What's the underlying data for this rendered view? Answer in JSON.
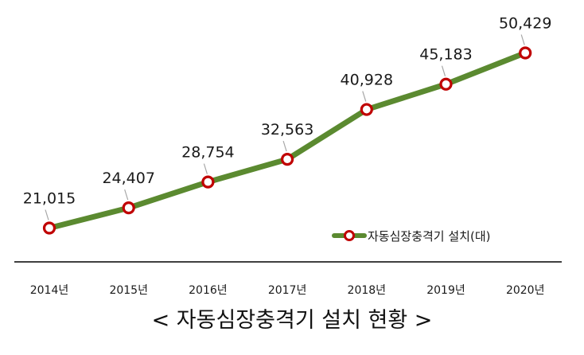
{
  "chart_data": {
    "type": "line",
    "categories": [
      "2014년",
      "2015년",
      "2016년",
      "2017년",
      "2018년",
      "2019년",
      "2020년"
    ],
    "series": [
      {
        "name": "자동심장충격기 설치(대)",
        "values": [
          21015,
          24407,
          28754,
          32563,
          40928,
          45183,
          50429
        ],
        "labels": [
          "21,015",
          "24,407",
          "28,754",
          "32,563",
          "40,928",
          "45,183",
          "50,429"
        ],
        "line_color": "#5b8a30",
        "marker_edge_color": "#c00000",
        "marker_face_color": "#ffffff"
      }
    ],
    "legend_position": "bottom-right inside plot",
    "grid": false,
    "axis_color": "#404040"
  },
  "caption": "< 자동심장충격기 설치 현황 >"
}
